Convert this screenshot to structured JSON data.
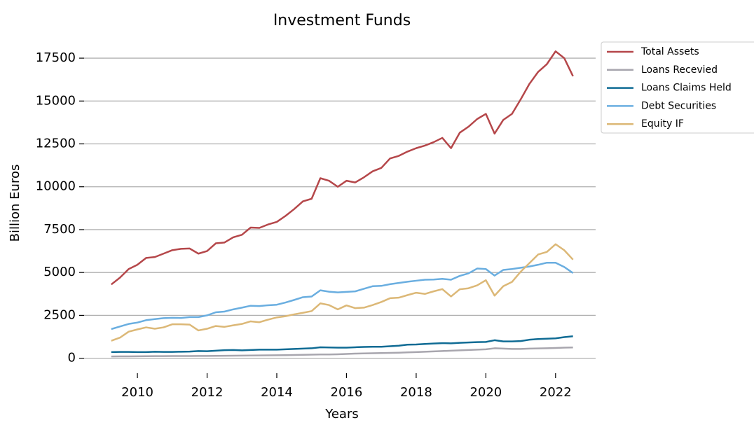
{
  "chart_data": {
    "type": "line",
    "title": "Investment Funds",
    "x_label": "Years",
    "y_label": "Billion Euros",
    "x": [
      2009.25,
      2009.5,
      2009.75,
      2010,
      2010.25,
      2010.5,
      2010.75,
      2011,
      2011.25,
      2011.5,
      2011.75,
      2012,
      2012.25,
      2012.5,
      2012.75,
      2013,
      2013.25,
      2013.5,
      2013.75,
      2014,
      2014.25,
      2014.5,
      2014.75,
      2015,
      2015.25,
      2015.5,
      2015.75,
      2016,
      2016.25,
      2016.5,
      2016.75,
      2017,
      2017.25,
      2017.5,
      2017.75,
      2018,
      2018.25,
      2018.5,
      2018.75,
      2019,
      2019.25,
      2019.5,
      2019.75,
      2020,
      2020.25,
      2020.5,
      2020.75,
      2021,
      2021.25,
      2021.5,
      2021.75,
      2022,
      2022.25,
      2022.5
    ],
    "series": [
      {
        "name": "Total Assets",
        "color": "#b5474a",
        "values": [
          4300,
          4700,
          5200,
          5450,
          5850,
          5900,
          6100,
          6300,
          6380,
          6400,
          6100,
          6250,
          6700,
          6750,
          7050,
          7200,
          7620,
          7600,
          7800,
          7950,
          8300,
          8700,
          9150,
          9300,
          10500,
          10350,
          10000,
          10350,
          10250,
          10550,
          10900,
          11100,
          11650,
          11800,
          12050,
          12250,
          12400,
          12600,
          12850,
          12250,
          13150,
          13500,
          13950,
          14250,
          13100,
          13900,
          14250,
          15100,
          16000,
          16700,
          17150,
          17900,
          17500,
          16450
        ]
      },
      {
        "name": "Loans Recevied",
        "color": "#a8a6ae",
        "values": [
          100,
          105,
          110,
          115,
          120,
          125,
          125,
          130,
          130,
          130,
          135,
          135,
          140,
          145,
          150,
          155,
          160,
          165,
          170,
          175,
          180,
          190,
          200,
          210,
          220,
          220,
          230,
          250,
          270,
          280,
          290,
          300,
          310,
          320,
          340,
          360,
          380,
          400,
          420,
          440,
          460,
          480,
          500,
          520,
          580,
          560,
          540,
          540,
          560,
          570,
          580,
          600,
          620,
          630
        ]
      },
      {
        "name": "Loans Claims Held",
        "color": "#0f6b94",
        "values": [
          360,
          370,
          370,
          360,
          360,
          380,
          370,
          370,
          380,
          390,
          420,
          410,
          440,
          470,
          480,
          460,
          480,
          500,
          500,
          500,
          520,
          540,
          560,
          580,
          640,
          630,
          620,
          620,
          640,
          660,
          670,
          670,
          700,
          730,
          790,
          800,
          830,
          860,
          880,
          870,
          900,
          920,
          940,
          950,
          1050,
          980,
          980,
          1000,
          1080,
          1120,
          1140,
          1160,
          1230,
          1280
        ]
      },
      {
        "name": "Debt Securities",
        "color": "#6aaee0",
        "values": [
          1700,
          1850,
          2000,
          2080,
          2220,
          2280,
          2340,
          2360,
          2350,
          2400,
          2400,
          2500,
          2680,
          2720,
          2850,
          2950,
          3060,
          3040,
          3090,
          3120,
          3250,
          3400,
          3560,
          3600,
          3960,
          3880,
          3840,
          3870,
          3900,
          4050,
          4200,
          4220,
          4320,
          4390,
          4460,
          4520,
          4580,
          4590,
          4630,
          4580,
          4800,
          4950,
          5230,
          5200,
          4820,
          5150,
          5200,
          5280,
          5350,
          5450,
          5570,
          5570,
          5320,
          4970
        ]
      },
      {
        "name": "Equity IF",
        "color": "#dcb877",
        "values": [
          1020,
          1200,
          1550,
          1680,
          1800,
          1720,
          1800,
          1980,
          1980,
          1960,
          1620,
          1720,
          1880,
          1830,
          1920,
          2000,
          2150,
          2100,
          2250,
          2380,
          2450,
          2560,
          2650,
          2750,
          3200,
          3100,
          2850,
          3080,
          2920,
          2950,
          3100,
          3280,
          3500,
          3530,
          3680,
          3820,
          3750,
          3900,
          4030,
          3600,
          4020,
          4080,
          4250,
          4550,
          3650,
          4200,
          4450,
          5050,
          5550,
          6050,
          6200,
          6650,
          6300,
          5750
        ]
      }
    ],
    "xlim": [
      2008.47,
      2023.15
    ],
    "ylim": [
      -750,
      18850
    ],
    "xticks": [
      2010,
      2012,
      2014,
      2016,
      2018,
      2020,
      2022
    ],
    "yticks": [
      0,
      2500,
      5000,
      7500,
      10000,
      12500,
      15000,
      17500
    ],
    "grid": true,
    "legend": "upper right"
  }
}
